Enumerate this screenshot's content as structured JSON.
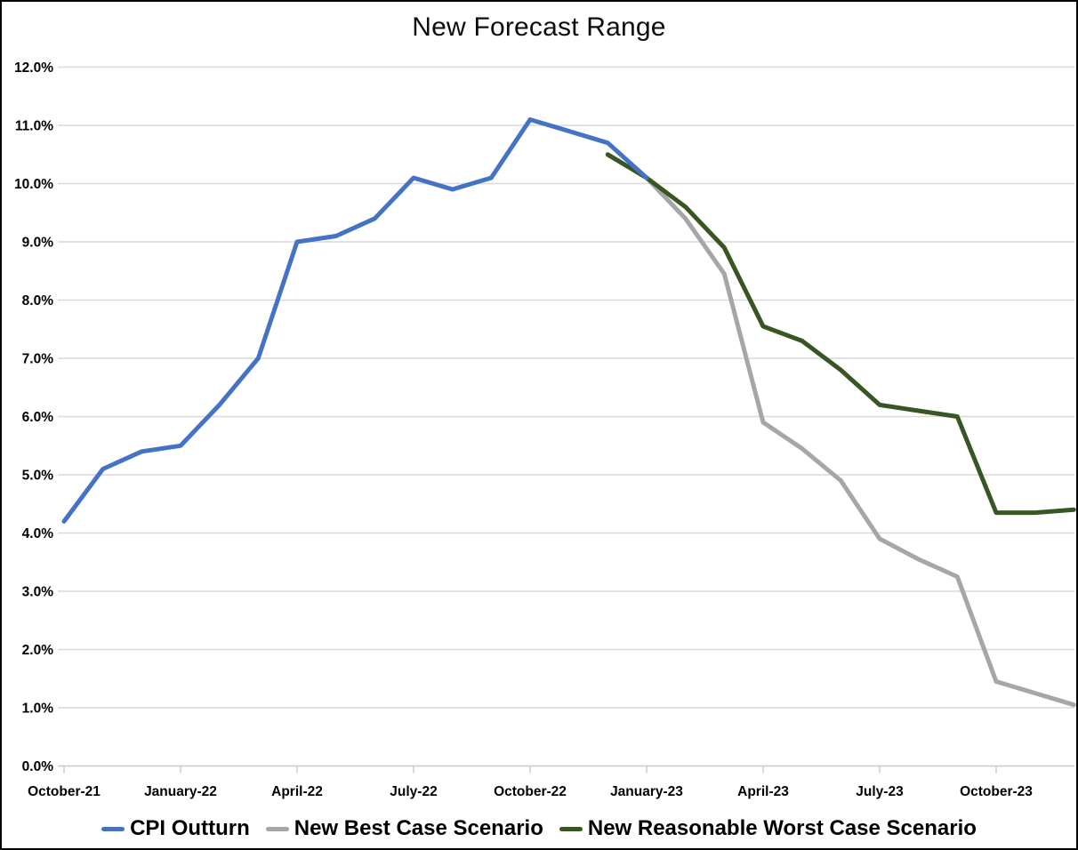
{
  "chart_data": {
    "type": "line",
    "title": "New Forecast Range",
    "xlabel": "",
    "ylabel": "",
    "y_unit": "percent",
    "ylim": [
      0,
      12
    ],
    "y_tick_step": 1,
    "grid": "horizontal",
    "legend_position": "bottom",
    "y_tick_labels": [
      "0.0%",
      "1.0%",
      "2.0%",
      "3.0%",
      "4.0%",
      "5.0%",
      "6.0%",
      "7.0%",
      "8.0%",
      "9.0%",
      "10.0%",
      "11.0%",
      "12.0%"
    ],
    "x_tick_labels": [
      "October-21",
      "January-22",
      "April-22",
      "July-22",
      "October-22",
      "January-23",
      "April-23",
      "July-23",
      "October-23"
    ],
    "months": [
      "Oct-21",
      "Nov-21",
      "Dec-21",
      "Jan-22",
      "Feb-22",
      "Mar-22",
      "Apr-22",
      "May-22",
      "Jun-22",
      "Jul-22",
      "Aug-22",
      "Sep-22",
      "Oct-22",
      "Nov-22",
      "Dec-22",
      "Jan-23",
      "Feb-23",
      "Mar-23",
      "Apr-23",
      "May-23",
      "Jun-23",
      "Jul-23",
      "Aug-23",
      "Sep-23",
      "Oct-23",
      "Nov-23",
      "Dec-23"
    ],
    "series": [
      {
        "name": "CPI Outturn",
        "color": "#4472C4",
        "points": [
          [
            "Oct-21",
            4.2
          ],
          [
            "Nov-21",
            5.1
          ],
          [
            "Dec-21",
            5.4
          ],
          [
            "Jan-22",
            5.5
          ],
          [
            "Feb-22",
            6.2
          ],
          [
            "Mar-22",
            7.0
          ],
          [
            "Apr-22",
            9.0
          ],
          [
            "May-22",
            9.1
          ],
          [
            "Jun-22",
            9.4
          ],
          [
            "Jul-22",
            10.1
          ],
          [
            "Aug-22",
            9.9
          ],
          [
            "Sep-22",
            10.1
          ],
          [
            "Oct-22",
            11.1
          ],
          [
            "Nov-22",
            10.9
          ],
          [
            "Dec-22",
            10.7
          ],
          [
            "Jan-23",
            10.1
          ]
        ]
      },
      {
        "name": "New Best Case Scenario",
        "color": "#A6A6A6",
        "points": [
          [
            "Dec-22",
            10.5
          ],
          [
            "Jan-23",
            10.1
          ],
          [
            "Feb-23",
            9.4
          ],
          [
            "Mar-23",
            8.45
          ],
          [
            "Apr-23",
            5.9
          ],
          [
            "May-23",
            5.45
          ],
          [
            "Jun-23",
            4.9
          ],
          [
            "Jul-23",
            3.9
          ],
          [
            "Aug-23",
            3.55
          ],
          [
            "Sep-23",
            3.25
          ],
          [
            "Oct-23",
            1.45
          ],
          [
            "Nov-23",
            1.25
          ],
          [
            "Dec-23",
            1.05
          ]
        ]
      },
      {
        "name": "New Reasonable Worst Case Scenario",
        "color": "#375623",
        "points": [
          [
            "Dec-22",
            10.5
          ],
          [
            "Jan-23",
            10.1
          ],
          [
            "Feb-23",
            9.6
          ],
          [
            "Mar-23",
            8.9
          ],
          [
            "Apr-23",
            7.55
          ],
          [
            "May-23",
            7.3
          ],
          [
            "Jun-23",
            6.8
          ],
          [
            "Jul-23",
            6.2
          ],
          [
            "Aug-23",
            6.1
          ],
          [
            "Sep-23",
            6.0
          ],
          [
            "Oct-23",
            4.35
          ],
          [
            "Nov-23",
            4.35
          ],
          [
            "Dec-23",
            4.4
          ]
        ]
      }
    ]
  }
}
